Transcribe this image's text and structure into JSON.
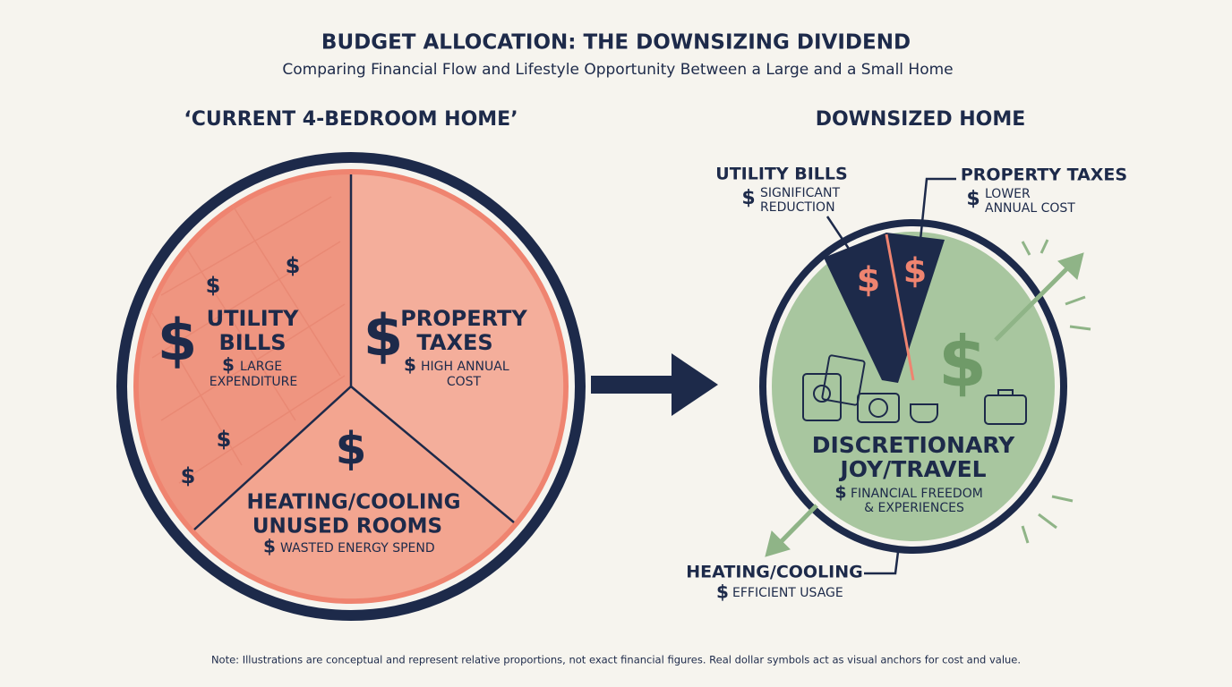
{
  "header": {
    "title": "BUDGET ALLOCATION: THE DOWNSIZING DIVIDEND",
    "subtitle": "Comparing Financial Flow and Lifestyle Opportunity Between a Large and a Small Home"
  },
  "currency_symbol": "$",
  "current_home": {
    "title": "‘CURRENT 4-BEDROOM HOME’",
    "segments": [
      {
        "title_lines": [
          "UTILITY",
          "BILLS"
        ],
        "desc_lines": [
          "LARGE",
          "EXPENDITURE"
        ]
      },
      {
        "title_lines": [
          "PROPERTY",
          "TAXES"
        ],
        "desc_lines": [
          "HIGH ANNUAL",
          "COST"
        ]
      },
      {
        "title_lines": [
          "HEATING/COOLING",
          "UNUSED ROOMS"
        ],
        "desc_lines": [
          "WASTED ENERGY SPEND"
        ]
      }
    ]
  },
  "downsized_home": {
    "title": "DOWNSIZED HOME",
    "segments": [
      {
        "title_lines": [
          "UTILITY BILLS"
        ],
        "desc_lines": [
          "SIGNIFICANT",
          "REDUCTION"
        ]
      },
      {
        "title_lines": [
          "PROPERTY TAXES"
        ],
        "desc_lines": [
          "LOWER",
          "ANNUAL COST"
        ]
      },
      {
        "title_lines": [
          "DISCRETIONARY",
          "JOY/TRAVEL"
        ],
        "desc_lines": [
          "FINANCIAL FREEDOM",
          "& EXPERIENCES"
        ]
      },
      {
        "title_lines": [
          "HEATING/COOLING"
        ],
        "desc_lines": [
          "EFFICIENT USAGE"
        ]
      }
    ]
  },
  "note": "Note: Illustrations are conceptual and represent relative proportions, not exact financial figures. Real dollar symbols act as visual anchors for cost and value."
}
